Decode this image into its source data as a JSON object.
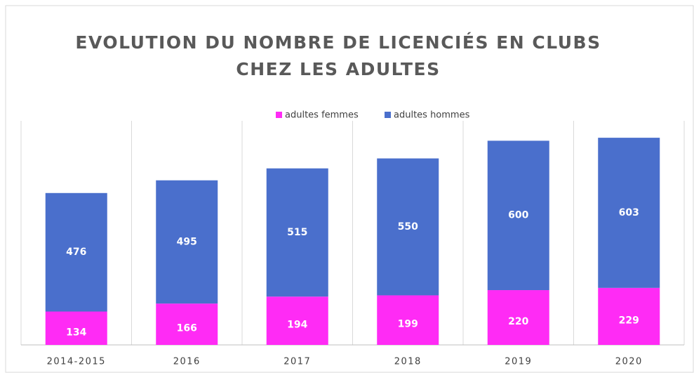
{
  "chart_data": {
    "type": "stacked_bar",
    "title": [
      "EVOLUTION DU NOMBRE DE LICENCIÉS EN CLUBS",
      "CHEZ LES ADULTES"
    ],
    "categories": [
      "2014-2015",
      "2016",
      "2017",
      "2018",
      "2019",
      "2020"
    ],
    "series": [
      {
        "name": "adultes femmes",
        "color": "#ff2bf5",
        "values": [
          134,
          166,
          194,
          199,
          220,
          229
        ]
      },
      {
        "name": "adultes hommes",
        "color": "#4a6fcc",
        "values": [
          476,
          495,
          515,
          550,
          600,
          603
        ]
      }
    ],
    "ylim": [
      0,
      900
    ],
    "legend": "top"
  }
}
